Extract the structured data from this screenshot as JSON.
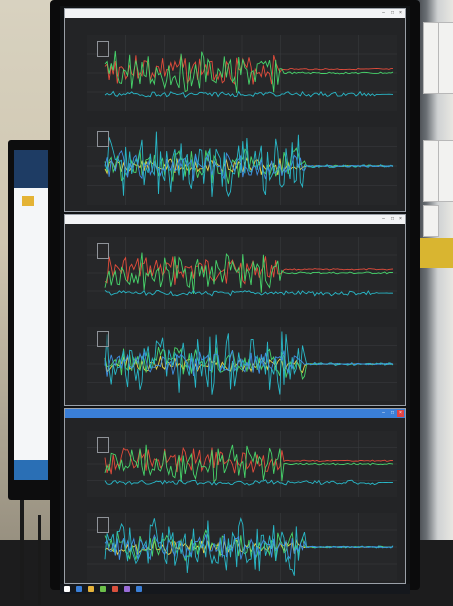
{
  "photo": {
    "description_colors": {
      "series_green": "#47d36a",
      "series_red": "#e24c3b",
      "series_cyan": "#29b7c7",
      "series_yellow": "#e7d64a",
      "series_blue": "#3f8fe0",
      "window_active_title": "#3a7fd8"
    }
  },
  "windows": [
    {
      "title": "",
      "plots": [
        {
          "title": "",
          "ylabel": ""
        },
        {
          "title": "",
          "ylabel": ""
        }
      ]
    },
    {
      "title": "",
      "plots": [
        {
          "title": "",
          "ylabel": ""
        },
        {
          "title": "",
          "ylabel": ""
        }
      ]
    },
    {
      "title": "",
      "plots": [
        {
          "title": "",
          "ylabel": ""
        },
        {
          "title": "",
          "ylabel": ""
        }
      ]
    }
  ],
  "icons": [
    "windows-start-icon",
    "taskbar-app-icon"
  ]
}
